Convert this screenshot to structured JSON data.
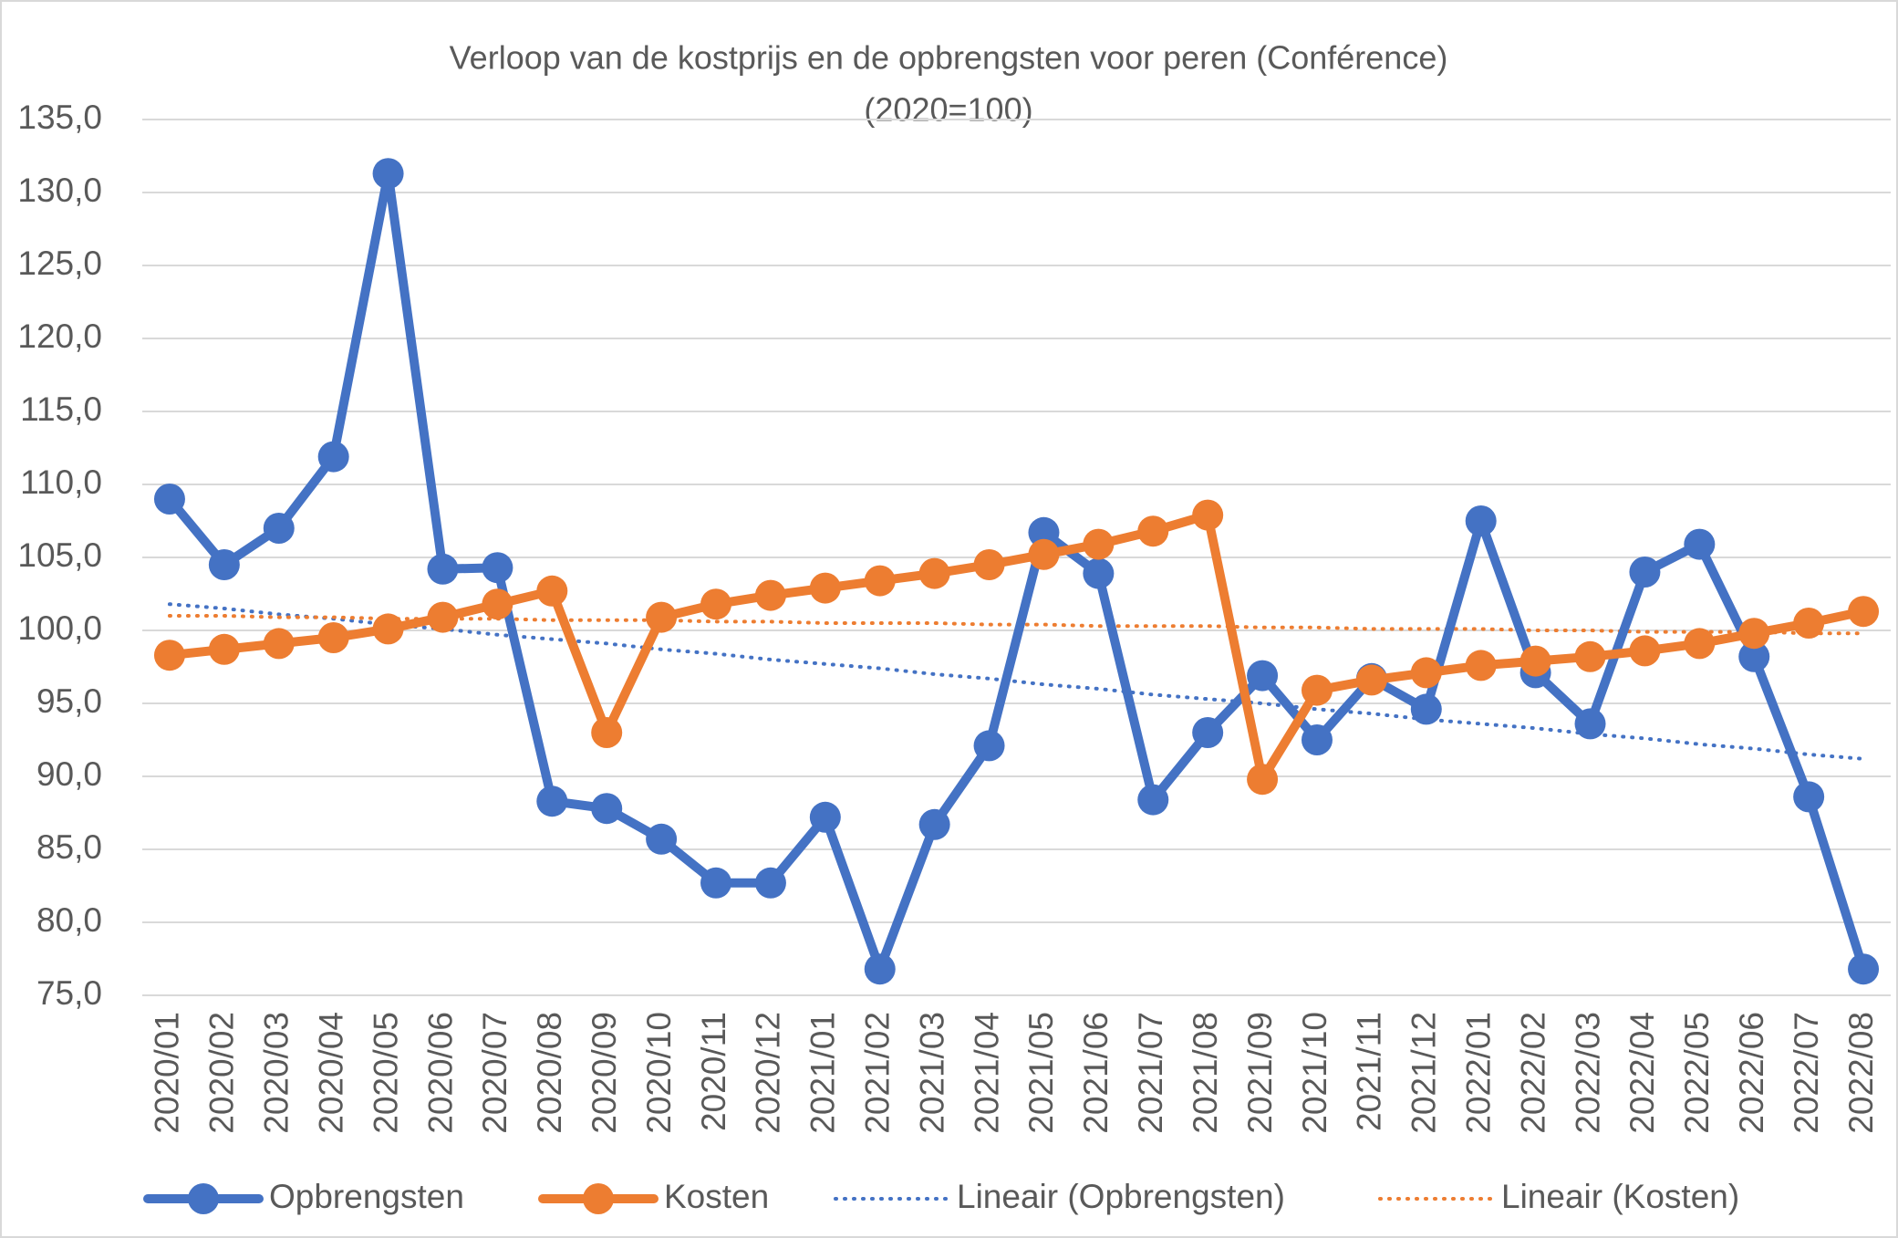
{
  "chart_data": {
    "type": "line",
    "title": "Verloop van de kostprijs en de opbrengsten voor peren (Conférence)",
    "subtitle": "(2020=100)",
    "categories": [
      "2020/01",
      "2020/02",
      "2020/03",
      "2020/04",
      "2020/05",
      "2020/06",
      "2020/07",
      "2020/08",
      "2020/09",
      "2020/10",
      "2020/11",
      "2020/12",
      "2021/01",
      "2021/02",
      "2021/03",
      "2021/04",
      "2021/05",
      "2021/06",
      "2021/07",
      "2021/08",
      "2021/09",
      "2021/10",
      "2021/11",
      "2021/12",
      "2022/01",
      "2022/02",
      "2022/03",
      "2022/04",
      "2022/05",
      "2022/06",
      "2022/07",
      "2022/08"
    ],
    "series": [
      {
        "name": "Opbrengsten",
        "color": "#4472c4",
        "style": "solid",
        "markers": true,
        "values": [
          109.0,
          104.5,
          107.0,
          111.9,
          131.3,
          104.2,
          104.3,
          88.3,
          87.8,
          85.7,
          82.7,
          82.7,
          87.2,
          76.8,
          86.7,
          92.1,
          106.7,
          103.9,
          88.4,
          93.0,
          96.9,
          92.5,
          96.7,
          94.6,
          107.5,
          97.1,
          93.6,
          104.0,
          105.9,
          98.2,
          88.6,
          76.8
        ]
      },
      {
        "name": "Kosten",
        "color": "#ed7d31",
        "style": "solid",
        "markers": true,
        "values": [
          98.3,
          98.7,
          99.1,
          99.5,
          100.1,
          100.9,
          101.8,
          102.7,
          93.0,
          100.9,
          101.8,
          102.4,
          102.9,
          103.4,
          103.9,
          104.5,
          105.2,
          105.9,
          106.8,
          107.9,
          89.8,
          95.9,
          96.6,
          97.1,
          97.6,
          97.9,
          98.2,
          98.6,
          99.1,
          99.8,
          100.5,
          101.3
        ]
      },
      {
        "name": "Lineair (Opbrengsten)",
        "color": "#4472c4",
        "style": "dotted",
        "markers": false,
        "values": [
          101.8,
          101.5,
          101.1,
          100.8,
          100.4,
          100.1,
          99.7,
          99.4,
          99.1,
          98.7,
          98.4,
          98.0,
          97.7,
          97.4,
          97.0,
          96.7,
          96.3,
          96.0,
          95.6,
          95.3,
          95.0,
          94.6,
          94.3,
          93.9,
          93.6,
          93.3,
          92.9,
          92.6,
          92.2,
          91.9,
          91.5,
          91.2
        ]
      },
      {
        "name": "Lineair (Kosten)",
        "color": "#ed7d31",
        "style": "dotted",
        "markers": false,
        "values": [
          101.0,
          101.0,
          100.9,
          100.9,
          100.8,
          100.8,
          100.8,
          100.7,
          100.7,
          100.7,
          100.6,
          100.6,
          100.5,
          100.5,
          100.5,
          100.4,
          100.4,
          100.3,
          100.3,
          100.3,
          100.2,
          100.2,
          100.1,
          100.1,
          100.1,
          100.0,
          100.0,
          99.9,
          99.9,
          99.9,
          99.8,
          99.8
        ]
      }
    ],
    "ylim": [
      75,
      135
    ],
    "yticks": [
      {
        "value": 75,
        "label": "75,0"
      },
      {
        "value": 80,
        "label": "80,0"
      },
      {
        "value": 85,
        "label": "85,0"
      },
      {
        "value": 90,
        "label": "90,0"
      },
      {
        "value": 95,
        "label": "95,0"
      },
      {
        "value": 100,
        "label": "100,0"
      },
      {
        "value": 105,
        "label": "105,0"
      },
      {
        "value": 110,
        "label": "110,0"
      },
      {
        "value": 115,
        "label": "115,0"
      },
      {
        "value": 120,
        "label": "120,0"
      },
      {
        "value": 125,
        "label": "125,0"
      },
      {
        "value": 130,
        "label": "130,0"
      },
      {
        "value": 135,
        "label": "135,0"
      }
    ],
    "grid": true,
    "legend": "bottom"
  }
}
